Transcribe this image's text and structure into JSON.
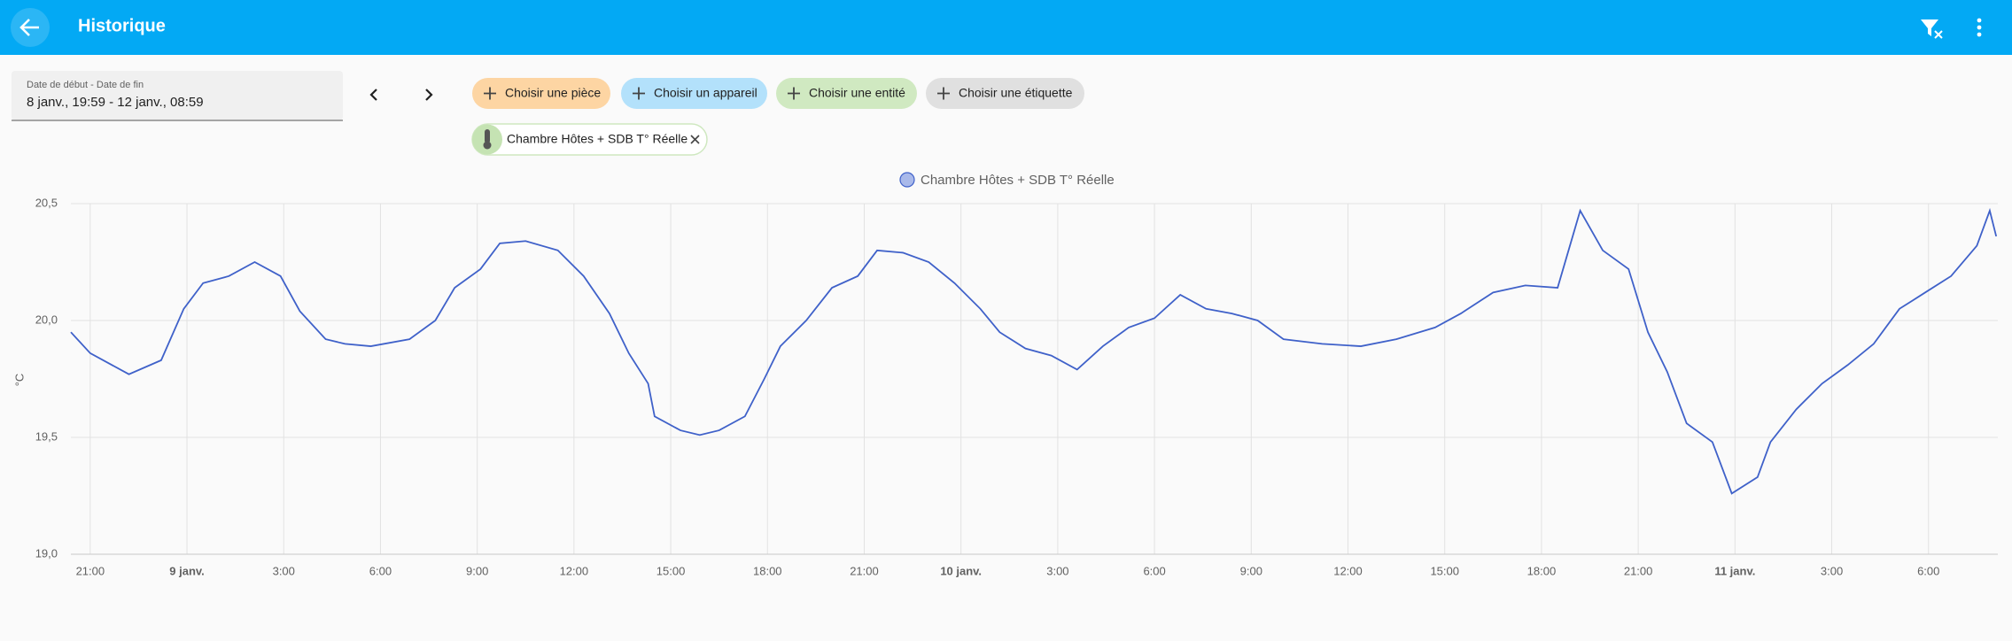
{
  "header": {
    "title": "Historique"
  },
  "date_picker": {
    "label": "Date de début - Date de fin",
    "value": "8 janv., 19:59 - 12 janv., 08:59"
  },
  "filters": {
    "chips": [
      "Choisir une pièce",
      "Choisir un appareil",
      "Choisir une entité",
      "Choisir une étiquette"
    ],
    "selected": "Chambre Hôtes + SDB T° Réelle"
  },
  "chart_data": {
    "type": "line",
    "y_label": "°C",
    "x": [
      20.4,
      21.0,
      22.2,
      23.2,
      23.9,
      24.5,
      25.3,
      26.1,
      26.9,
      27.5,
      28.3,
      28.9,
      29.7,
      30.9,
      31.7,
      32.3,
      33.1,
      33.7,
      34.5,
      35.5,
      36.3,
      37.1,
      37.7,
      38.3,
      38.5,
      39.3,
      39.9,
      40.5,
      41.3,
      41.9,
      42.4,
      43.2,
      44.0,
      44.8,
      45.4,
      46.2,
      47.0,
      47.8,
      48.6,
      49.2,
      50.0,
      50.8,
      51.6,
      52.4,
      53.2,
      54.0,
      54.8,
      55.6,
      56.4,
      57.2,
      58.0,
      59.2,
      60.4,
      61.5,
      62.7,
      63.5,
      64.5,
      65.5,
      66.5,
      67.2,
      67.9,
      68.7,
      69.3,
      69.9,
      70.5,
      71.3,
      71.9,
      72.7,
      73.1,
      73.9,
      74.7,
      75.5,
      76.3,
      77.1,
      77.9,
      78.7,
      79.5,
      79.9,
      80.1
    ],
    "series": [
      {
        "name": "Chambre Hôtes + SDB T° Réelle",
        "color": "#3f61c9",
        "values": [
          19.95,
          19.86,
          19.77,
          19.83,
          20.05,
          20.16,
          20.19,
          20.25,
          20.19,
          20.04,
          19.92,
          19.9,
          19.89,
          19.92,
          20.0,
          20.14,
          20.22,
          20.33,
          20.34,
          20.3,
          20.19,
          20.03,
          19.86,
          19.73,
          19.59,
          19.53,
          19.51,
          19.53,
          19.59,
          19.75,
          19.89,
          20.0,
          20.14,
          20.19,
          20.3,
          20.29,
          20.25,
          20.16,
          20.05,
          19.95,
          19.88,
          19.85,
          19.79,
          19.89,
          19.97,
          20.01,
          20.11,
          20.05,
          20.03,
          20.0,
          19.92,
          19.9,
          19.89,
          19.92,
          19.97,
          20.03,
          20.12,
          20.15,
          20.14,
          20.47,
          20.3,
          20.22,
          19.95,
          19.78,
          19.56,
          19.48,
          19.26,
          19.33,
          19.48,
          19.62,
          19.73,
          19.81,
          19.9,
          20.05,
          20.12,
          20.19,
          20.32,
          20.47,
          20.36
        ]
      }
    ],
    "xlim": [
      20.4,
      80.15
    ],
    "xticks": [
      {
        "value": 21,
        "label": "21:00"
      },
      {
        "value": 24,
        "label": "9 janv."
      },
      {
        "value": 27,
        "label": "3:00"
      },
      {
        "value": 30,
        "label": "6:00"
      },
      {
        "value": 33,
        "label": "9:00"
      },
      {
        "value": 36,
        "label": "12:00"
      },
      {
        "value": 39,
        "label": "15:00"
      },
      {
        "value": 42,
        "label": "18:00"
      },
      {
        "value": 45,
        "label": "21:00"
      },
      {
        "value": 48,
        "label": "10 janv."
      },
      {
        "value": 51,
        "label": "3:00"
      },
      {
        "value": 54,
        "label": "6:00"
      },
      {
        "value": 57,
        "label": "9:00"
      },
      {
        "value": 60,
        "label": "12:00"
      },
      {
        "value": 63,
        "label": "15:00"
      },
      {
        "value": 66,
        "label": "18:00"
      },
      {
        "value": 69,
        "label": "21:00"
      },
      {
        "value": 72,
        "label": "11 janv."
      },
      {
        "value": 75,
        "label": "3:00"
      },
      {
        "value": 78,
        "label": "6:00"
      }
    ],
    "ylim": [
      19.0,
      20.5
    ],
    "yticks": [
      {
        "value": 19.0,
        "label": "19,0"
      },
      {
        "value": 19.5,
        "label": "19,5"
      },
      {
        "value": 20.0,
        "label": "20,0"
      },
      {
        "value": 20.5,
        "label": "20,5"
      }
    ],
    "grid": true
  }
}
